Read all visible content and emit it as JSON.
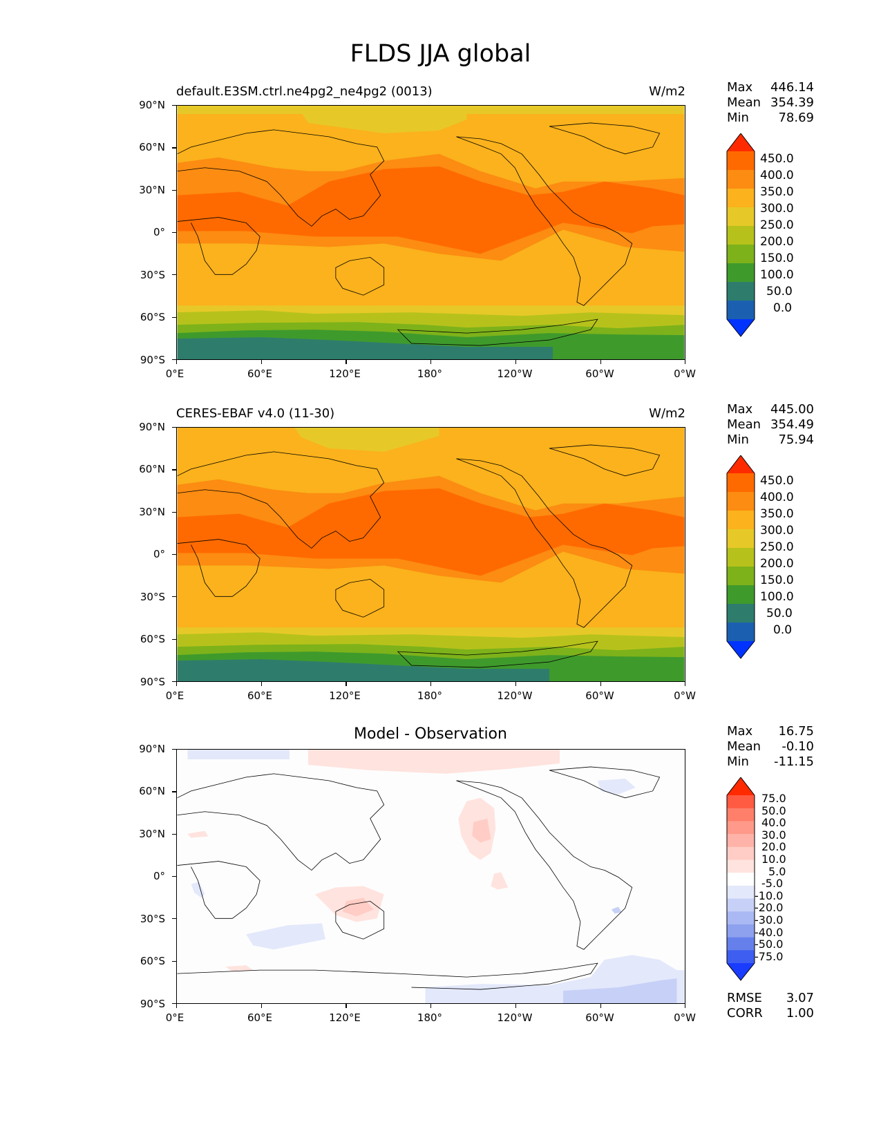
{
  "figure_title": "FLDS JJA global",
  "panels": [
    {
      "title_left": "default.E3SM.ctrl.ne4pg2_ne4pg2 (0013)",
      "units": "W/m2",
      "stats": {
        "max_label": "Max",
        "max": "446.14",
        "mean_label": "Mean",
        "mean": "354.39",
        "min_label": "Min",
        "min": "78.69"
      }
    },
    {
      "title_left": "CERES-EBAF v4.0 (11-30)",
      "units": "W/m2",
      "stats": {
        "max_label": "Max",
        "max": "445.00",
        "mean_label": "Mean",
        "mean": "354.49",
        "min_label": "Min",
        "min": "75.94"
      }
    },
    {
      "title_center": "Model - Observation",
      "stats": {
        "max_label": "Max",
        "max": "16.75",
        "mean_label": "Mean",
        "mean": "-0.10",
        "min_label": "Min",
        "min": "-11.15"
      },
      "rmse_label": "RMSE",
      "rmse": "3.07",
      "corr_label": "CORR",
      "corr": "1.00"
    }
  ],
  "y_ticks": [
    "90°N",
    "60°N",
    "30°N",
    "0°",
    "30°S",
    "60°S",
    "90°S"
  ],
  "x_ticks": [
    "0°E",
    "60°E",
    "120°E",
    "180°",
    "120°W",
    "60°W",
    "0°W"
  ],
  "colorbar_main": {
    "labels": [
      "450.0",
      "400.0",
      "350.0",
      "300.0",
      "250.0",
      "200.0",
      "150.0",
      "100.0",
      "50.0",
      "0.0"
    ],
    "colors": [
      "#ff2a00",
      "#ff6a00",
      "#fc8c12",
      "#fbb21c",
      "#e6c928",
      "#b6c21b",
      "#7db21a",
      "#3f9a2c",
      "#2e7d6c",
      "#1b60b0",
      "#0033ff"
    ]
  },
  "colorbar_diff": {
    "labels": [
      "75.0",
      "50.0",
      "40.0",
      "30.0",
      "20.0",
      "10.0",
      "5.0",
      "-5.0",
      "-10.0",
      "-20.0",
      "-30.0",
      "-40.0",
      "-50.0",
      "-75.0"
    ],
    "colors": [
      "#ff2a00",
      "#ff5a42",
      "#ff7f6a",
      "#ff998a",
      "#ffb3a8",
      "#ffcdc5",
      "#ffe3de",
      "#ffffff",
      "#e3e8fb",
      "#c7d1f7",
      "#aab9f3",
      "#8da1ef",
      "#6680eb",
      "#3d5ef0",
      "#1a3cff"
    ]
  },
  "chart_data": [
    {
      "type": "heatmap",
      "title": "default.E3SM.ctrl.ne4pg2_ne4pg2 (0013)",
      "variable": "FLDS",
      "season": "JJA",
      "units": "W/m2",
      "xlim": [
        0,
        360
      ],
      "ylim": [
        -90,
        90
      ],
      "levels": [
        0,
        50,
        100,
        150,
        200,
        250,
        300,
        350,
        400,
        450
      ],
      "zonal_bands": [
        {
          "lat": [
            75,
            90
          ],
          "value": 280
        },
        {
          "lat": [
            60,
            75
          ],
          "value": 320
        },
        {
          "lat": [
            40,
            60
          ],
          "value": 330
        },
        {
          "lat": [
            15,
            40
          ],
          "value": 360
        },
        {
          "lat": [
            -15,
            15
          ],
          "value": 410
        },
        {
          "lat": [
            -35,
            -15
          ],
          "value": 370
        },
        {
          "lat": [
            -50,
            -35
          ],
          "value": 330
        },
        {
          "lat": [
            -60,
            -50
          ],
          "value": 290
        },
        {
          "lat": [
            -65,
            -60
          ],
          "value": 260
        },
        {
          "lat": [
            -70,
            -65
          ],
          "value": 220
        },
        {
          "lat": [
            -75,
            -70
          ],
          "value": 170
        },
        {
          "lat": [
            -90,
            -75
          ],
          "value": 110
        }
      ],
      "max": 446.14,
      "mean": 354.39,
      "min": 78.69
    },
    {
      "type": "heatmap",
      "title": "CERES-EBAF v4.0 (11-30)",
      "variable": "FLDS",
      "season": "JJA",
      "units": "W/m2",
      "xlim": [
        0,
        360
      ],
      "ylim": [
        -90,
        90
      ],
      "levels": [
        0,
        50,
        100,
        150,
        200,
        250,
        300,
        350,
        400,
        450
      ],
      "zonal_bands": [
        {
          "lat": [
            75,
            90
          ],
          "value": 310
        },
        {
          "lat": [
            60,
            75
          ],
          "value": 320
        },
        {
          "lat": [
            40,
            60
          ],
          "value": 330
        },
        {
          "lat": [
            15,
            40
          ],
          "value": 360
        },
        {
          "lat": [
            -15,
            15
          ],
          "value": 410
        },
        {
          "lat": [
            -35,
            -15
          ],
          "value": 370
        },
        {
          "lat": [
            -50,
            -35
          ],
          "value": 330
        },
        {
          "lat": [
            -60,
            -50
          ],
          "value": 290
        },
        {
          "lat": [
            -65,
            -60
          ],
          "value": 260
        },
        {
          "lat": [
            -70,
            -65
          ],
          "value": 220
        },
        {
          "lat": [
            -75,
            -70
          ],
          "value": 170
        },
        {
          "lat": [
            -90,
            -75
          ],
          "value": 110
        }
      ],
      "max": 445.0,
      "mean": 354.49,
      "min": 75.94
    },
    {
      "type": "heatmap",
      "title": "Model - Observation",
      "xlim": [
        0,
        360
      ],
      "ylim": [
        -90,
        90
      ],
      "levels": [
        -75,
        -50,
        -40,
        -30,
        -20,
        -10,
        -5,
        5,
        10,
        20,
        30,
        40,
        50,
        75
      ],
      "max": 16.75,
      "mean": -0.1,
      "min": -11.15,
      "rmse": 3.07,
      "corr": 1.0
    }
  ]
}
